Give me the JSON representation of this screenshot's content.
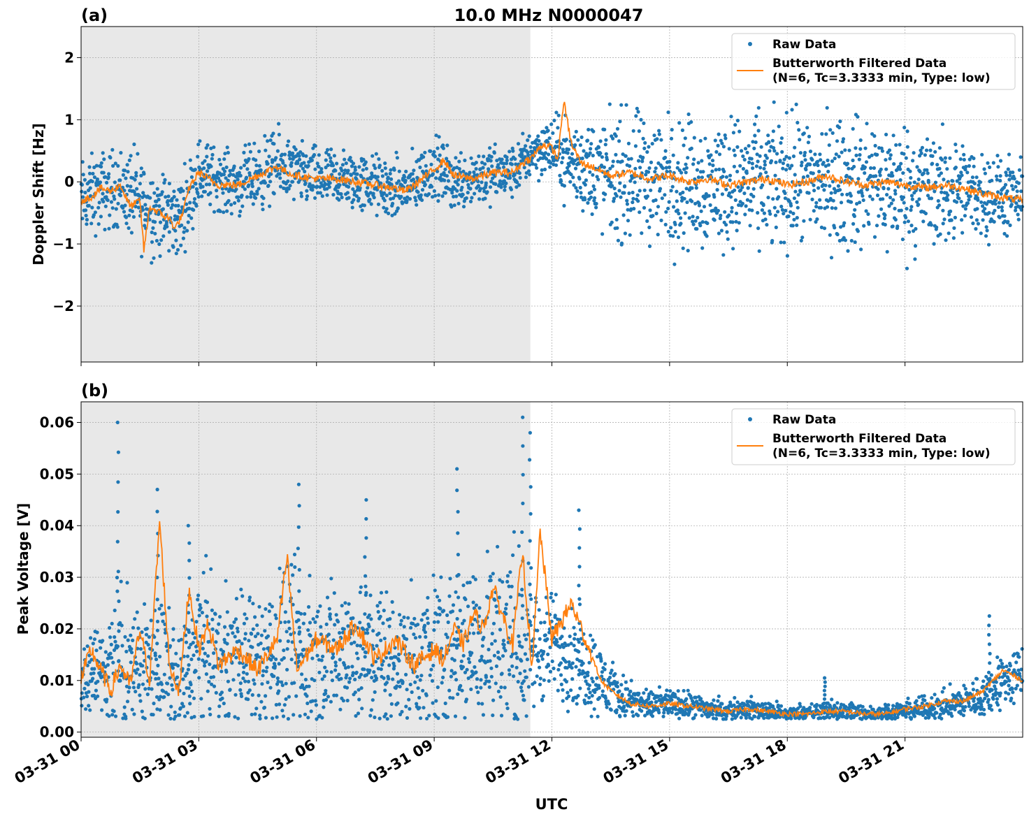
{
  "figure": {
    "title": "10.0 MHz N0000047",
    "xlabel": "UTC",
    "x_ticks": [
      "03-31 00",
      "03-31 03",
      "03-31 06",
      "03-31 09",
      "03-31 12",
      "03-31 15",
      "03-31 18",
      "03-31 21"
    ],
    "x_range_hours": [
      0,
      24
    ]
  },
  "colors": {
    "raw": "#1f77b4",
    "filtered": "#ff7f0e",
    "shade": "#e8e8e8",
    "grid": "#b0b0b0"
  },
  "legend": {
    "raw_label": "Raw Data",
    "filtered_label_line1": "Butterworth Filtered Data",
    "filtered_label_line2": "(N=6, Tc=3.3333 min, Type: low)",
    "position": "upper right"
  },
  "chart_data": [
    {
      "type": "scatter",
      "panel_label": "(a)",
      "ylabel": "Doppler Shift [Hz]",
      "ylim": [
        -2.9,
        2.5
      ],
      "y_ticks": [
        -2,
        -1,
        0,
        1,
        2
      ],
      "y_tick_labels": [
        "−2",
        "−1",
        "0",
        "1",
        "2"
      ],
      "shaded_region_hours": [
        0,
        11.45
      ],
      "grid": true,
      "series": [
        {
          "name": "Raw Data",
          "kind": "points",
          "x_hours": [
            0,
            0.5,
            1,
            1.5,
            2,
            2.5,
            3,
            3.5,
            4,
            4.5,
            5,
            5.5,
            6,
            6.5,
            7,
            7.5,
            8,
            8.5,
            9,
            9.5,
            10,
            10.5,
            11,
            11.5,
            12,
            12.5,
            13,
            13.5,
            14,
            14.5,
            15,
            15.5,
            16,
            16.5,
            17,
            17.5,
            18,
            18.5,
            19,
            19.5,
            20,
            20.5,
            21,
            21.5,
            22,
            22.5,
            23,
            23.5,
            24
          ],
          "center": [
            -0.3,
            -0.15,
            -0.1,
            -0.3,
            -0.5,
            -0.6,
            0.15,
            0.05,
            -0.05,
            0.1,
            0.25,
            0.15,
            0.05,
            0.05,
            0.0,
            -0.05,
            -0.15,
            -0.05,
            0.25,
            0.0,
            0.1,
            0.1,
            0.15,
            0.5,
            0.55,
            0.3,
            0.2,
            0.1,
            0.05,
            0.05,
            0.0,
            0.0,
            -0.05,
            0.0,
            0.0,
            -0.05,
            0.0,
            0.0,
            0.0,
            -0.05,
            0.0,
            -0.05,
            -0.1,
            -0.1,
            -0.15,
            -0.15,
            -0.2,
            -0.25,
            -0.3
          ],
          "spread": [
            0.45,
            0.45,
            0.45,
            0.55,
            0.5,
            0.45,
            0.4,
            0.35,
            0.35,
            0.4,
            0.4,
            0.35,
            0.35,
            0.35,
            0.35,
            0.35,
            0.35,
            0.35,
            0.35,
            0.35,
            0.35,
            0.35,
            0.3,
            0.3,
            0.35,
            0.5,
            0.6,
            0.7,
            0.75,
            0.75,
            0.75,
            0.75,
            0.75,
            0.75,
            0.75,
            0.75,
            0.75,
            0.75,
            0.75,
            0.75,
            0.75,
            0.75,
            0.75,
            0.7,
            0.65,
            0.55,
            0.5,
            0.45,
            0.4
          ]
        },
        {
          "name": "Butterworth Filtered Data",
          "kind": "line",
          "x_hours": [
            0,
            0.25,
            0.5,
            0.75,
            1,
            1.25,
            1.5,
            1.6,
            1.75,
            2,
            2.25,
            2.4,
            2.6,
            2.75,
            3,
            3.25,
            3.5,
            4,
            4.5,
            5,
            5.25,
            5.5,
            6,
            6.5,
            7,
            7.5,
            8,
            8.25,
            8.5,
            9,
            9.25,
            9.5,
            10,
            10.5,
            11,
            11.25,
            11.5,
            11.75,
            12,
            12.15,
            12.3,
            12.5,
            12.75,
            13,
            13.5,
            14,
            14.5,
            15,
            15.5,
            16,
            16.5,
            17,
            17.5,
            18,
            18.5,
            19,
            19.5,
            20,
            20.5,
            21,
            21.5,
            22,
            22.5,
            23,
            23.5,
            24
          ],
          "y": [
            -0.3,
            -0.25,
            -0.1,
            -0.15,
            -0.05,
            -0.4,
            -0.3,
            -1.1,
            -0.4,
            -0.5,
            -0.6,
            -0.75,
            -0.5,
            -0.1,
            0.15,
            0.05,
            -0.05,
            -0.05,
            0.1,
            0.25,
            0.15,
            0.1,
            0.05,
            0.05,
            0.0,
            -0.05,
            -0.1,
            -0.15,
            -0.05,
            0.2,
            0.35,
            0.1,
            0.05,
            0.15,
            0.15,
            0.3,
            0.4,
            0.6,
            0.55,
            0.35,
            1.3,
            0.6,
            0.3,
            0.25,
            0.1,
            0.15,
            0.05,
            0.1,
            0.0,
            0.05,
            -0.05,
            0.0,
            0.05,
            -0.05,
            0.0,
            0.1,
            0.0,
            -0.05,
            0.0,
            -0.05,
            -0.1,
            -0.05,
            -0.1,
            -0.2,
            -0.25,
            -0.3
          ]
        }
      ]
    },
    {
      "type": "scatter",
      "panel_label": "(b)",
      "ylabel": "Peak Voltage [V]",
      "ylim": [
        -0.001,
        0.064
      ],
      "y_ticks": [
        0.0,
        0.01,
        0.02,
        0.03,
        0.04,
        0.05,
        0.06
      ],
      "y_tick_labels": [
        "0.00",
        "0.01",
        "0.02",
        "0.03",
        "0.04",
        "0.05",
        "0.06"
      ],
      "shaded_region_hours": [
        0,
        11.45
      ],
      "grid": true,
      "series": [
        {
          "name": "Raw Data",
          "kind": "points",
          "x_hours": [
            0,
            0.5,
            1,
            1.5,
            2,
            2.5,
            3,
            3.5,
            4,
            4.5,
            5,
            5.5,
            6,
            6.5,
            7,
            7.5,
            8,
            8.5,
            9,
            9.5,
            10,
            10.5,
            11,
            11.5,
            12,
            12.5,
            13,
            13.5,
            14,
            14.5,
            15,
            15.5,
            16,
            16.5,
            17,
            17.5,
            18,
            18.5,
            19,
            19.5,
            20,
            20.5,
            21,
            21.5,
            22,
            22.5,
            23,
            23.5,
            24
          ],
          "center": [
            0.011,
            0.012,
            0.014,
            0.012,
            0.013,
            0.009,
            0.017,
            0.014,
            0.015,
            0.013,
            0.016,
            0.015,
            0.014,
            0.016,
            0.016,
            0.015,
            0.014,
            0.014,
            0.015,
            0.018,
            0.017,
            0.018,
            0.017,
            0.016,
            0.017,
            0.015,
            0.012,
            0.008,
            0.006,
            0.005,
            0.0055,
            0.005,
            0.0045,
            0.004,
            0.0045,
            0.004,
            0.0035,
            0.0035,
            0.004,
            0.004,
            0.0035,
            0.0035,
            0.004,
            0.0045,
            0.005,
            0.006,
            0.007,
            0.01,
            0.011
          ],
          "spread": [
            0.007,
            0.006,
            0.012,
            0.008,
            0.01,
            0.007,
            0.012,
            0.01,
            0.009,
            0.01,
            0.011,
            0.012,
            0.01,
            0.01,
            0.011,
            0.01,
            0.009,
            0.01,
            0.011,
            0.012,
            0.011,
            0.013,
            0.014,
            0.009,
            0.007,
            0.007,
            0.006,
            0.004,
            0.0025,
            0.002,
            0.002,
            0.0018,
            0.0018,
            0.0016,
            0.0015,
            0.0014,
            0.0013,
            0.0013,
            0.0014,
            0.0014,
            0.0013,
            0.0013,
            0.0014,
            0.0016,
            0.002,
            0.0025,
            0.003,
            0.004,
            0.004
          ],
          "spikes": [
            [
              0.95,
              0.06
            ],
            [
              1.95,
              0.047
            ],
            [
              2.75,
              0.04
            ],
            [
              5.55,
              0.048
            ],
            [
              7.25,
              0.045
            ],
            [
              9.6,
              0.051
            ],
            [
              11.25,
              0.061
            ],
            [
              11.45,
              0.058
            ],
            [
              12.7,
              0.043
            ],
            [
              18.95,
              0.0105
            ],
            [
              23.15,
              0.0225
            ]
          ]
        },
        {
          "name": "Butterworth Filtered Data",
          "kind": "line",
          "x_hours": [
            0,
            0.25,
            0.5,
            0.75,
            1,
            1.25,
            1.5,
            1.75,
            2,
            2.25,
            2.5,
            2.75,
            3,
            3.25,
            3.5,
            4,
            4.5,
            5,
            5.25,
            5.5,
            6,
            6.5,
            7,
            7.5,
            8,
            8.5,
            9,
            9.25,
            9.5,
            9.75,
            10,
            10.25,
            10.5,
            11,
            11.25,
            11.5,
            11.7,
            12,
            12.5,
            12.75,
            13,
            13.25,
            13.5,
            14,
            14.5,
            15,
            15.5,
            16,
            16.5,
            17,
            17.5,
            18,
            18.5,
            19,
            19.5,
            20,
            20.5,
            21,
            21.5,
            22,
            22.5,
            23,
            23.5,
            24
          ],
          "y": [
            0.01,
            0.016,
            0.012,
            0.008,
            0.013,
            0.009,
            0.02,
            0.01,
            0.041,
            0.013,
            0.008,
            0.028,
            0.016,
            0.021,
            0.013,
            0.016,
            0.012,
            0.018,
            0.034,
            0.012,
            0.018,
            0.016,
            0.021,
            0.014,
            0.018,
            0.013,
            0.016,
            0.014,
            0.02,
            0.017,
            0.023,
            0.02,
            0.028,
            0.017,
            0.035,
            0.012,
            0.039,
            0.018,
            0.025,
            0.02,
            0.015,
            0.01,
            0.008,
            0.0055,
            0.005,
            0.0055,
            0.005,
            0.0045,
            0.004,
            0.0045,
            0.004,
            0.0035,
            0.0035,
            0.004,
            0.004,
            0.0035,
            0.0035,
            0.0045,
            0.005,
            0.006,
            0.006,
            0.008,
            0.012,
            0.01
          ]
        }
      ]
    }
  ]
}
